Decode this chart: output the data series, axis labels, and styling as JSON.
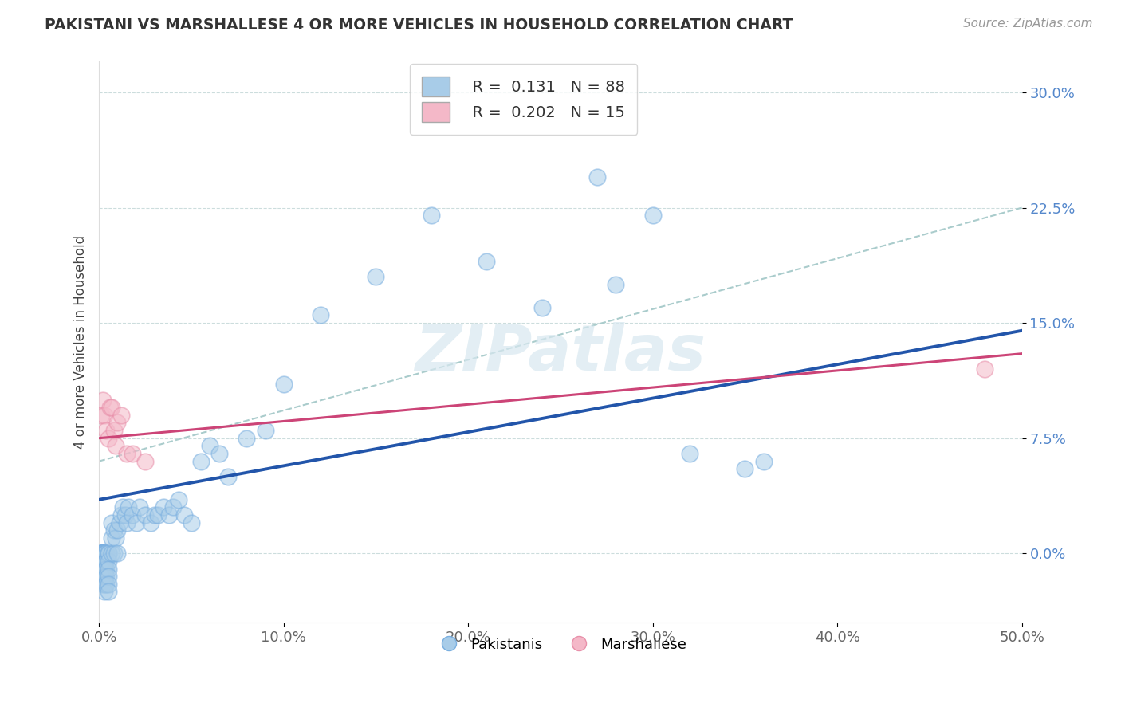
{
  "title": "PAKISTANI VS MARSHALLESE 4 OR MORE VEHICLES IN HOUSEHOLD CORRELATION CHART",
  "source": "Source: ZipAtlas.com",
  "ylabel": "4 or more Vehicles in Household",
  "xlim": [
    0.0,
    0.5
  ],
  "ylim": [
    -0.045,
    0.32
  ],
  "xticks": [
    0.0,
    0.1,
    0.2,
    0.3,
    0.4,
    0.5
  ],
  "xticklabels": [
    "0.0%",
    "10.0%",
    "20.0%",
    "30.0%",
    "40.0%",
    "50.0%"
  ],
  "ytick_vals": [
    0.0,
    0.075,
    0.15,
    0.225,
    0.3
  ],
  "ytick_labels": [
    "0.0%",
    "7.5%",
    "15.0%",
    "22.5%",
    "30.0%"
  ],
  "blue_color": "#a8cce8",
  "pink_color": "#f4b8c8",
  "blue_edge_color": "#7aafe0",
  "pink_edge_color": "#e890aa",
  "blue_line_color": "#2255aa",
  "pink_line_color": "#cc4477",
  "dashed_line_color": "#aacccc",
  "watermark": "ZIPatlas",
  "pakistani_x": [
    0.001,
    0.001,
    0.001,
    0.001,
    0.001,
    0.001,
    0.001,
    0.001,
    0.001,
    0.001,
    0.002,
    0.002,
    0.002,
    0.002,
    0.002,
    0.002,
    0.002,
    0.002,
    0.002,
    0.002,
    0.003,
    0.003,
    0.003,
    0.003,
    0.003,
    0.003,
    0.003,
    0.003,
    0.003,
    0.003,
    0.004,
    0.004,
    0.004,
    0.004,
    0.004,
    0.004,
    0.005,
    0.005,
    0.005,
    0.005,
    0.005,
    0.005,
    0.005,
    0.007,
    0.007,
    0.007,
    0.008,
    0.008,
    0.009,
    0.01,
    0.01,
    0.011,
    0.012,
    0.013,
    0.014,
    0.015,
    0.016,
    0.018,
    0.02,
    0.022,
    0.025,
    0.028,
    0.03,
    0.032,
    0.035,
    0.038,
    0.04,
    0.043,
    0.046,
    0.05,
    0.055,
    0.06,
    0.065,
    0.07,
    0.08,
    0.09,
    0.1,
    0.12,
    0.15,
    0.18,
    0.21,
    0.24,
    0.28,
    0.32,
    0.36,
    0.27,
    0.3,
    0.35
  ],
  "pakistani_y": [
    0.0,
    0.0,
    0.0,
    0.0,
    0.0,
    0.0,
    -0.005,
    -0.005,
    -0.01,
    -0.015,
    0.0,
    0.0,
    0.0,
    0.0,
    -0.005,
    -0.005,
    -0.01,
    -0.01,
    -0.015,
    -0.02,
    0.0,
    0.0,
    0.0,
    -0.005,
    -0.005,
    -0.01,
    -0.01,
    -0.015,
    -0.02,
    -0.025,
    0.0,
    0.0,
    -0.005,
    -0.01,
    -0.015,
    -0.02,
    0.0,
    0.0,
    -0.005,
    -0.01,
    -0.015,
    -0.02,
    -0.025,
    0.0,
    0.01,
    0.02,
    0.0,
    0.015,
    0.01,
    0.0,
    0.015,
    0.02,
    0.025,
    0.03,
    0.025,
    0.02,
    0.03,
    0.025,
    0.02,
    0.03,
    0.025,
    0.02,
    0.025,
    0.025,
    0.03,
    0.025,
    0.03,
    0.035,
    0.025,
    0.02,
    0.06,
    0.07,
    0.065,
    0.05,
    0.075,
    0.08,
    0.11,
    0.155,
    0.18,
    0.22,
    0.19,
    0.16,
    0.175,
    0.065,
    0.06,
    0.245,
    0.22,
    0.055
  ],
  "marshallese_x": [
    0.001,
    0.002,
    0.003,
    0.004,
    0.005,
    0.006,
    0.007,
    0.008,
    0.009,
    0.01,
    0.012,
    0.015,
    0.018,
    0.025,
    0.48
  ],
  "marshallese_y": [
    0.09,
    0.1,
    0.09,
    0.08,
    0.075,
    0.095,
    0.095,
    0.08,
    0.07,
    0.085,
    0.09,
    0.065,
    0.065,
    0.06,
    0.12
  ],
  "blue_trend_x": [
    0.0,
    0.5
  ],
  "blue_trend_y": [
    0.035,
    0.145
  ],
  "pink_trend_x": [
    0.0,
    0.5
  ],
  "pink_trend_y": [
    0.075,
    0.13
  ],
  "dashed_trend_x": [
    0.0,
    0.5
  ],
  "dashed_trend_y": [
    0.06,
    0.225
  ],
  "figsize": [
    14.06,
    8.92
  ],
  "dpi": 100
}
